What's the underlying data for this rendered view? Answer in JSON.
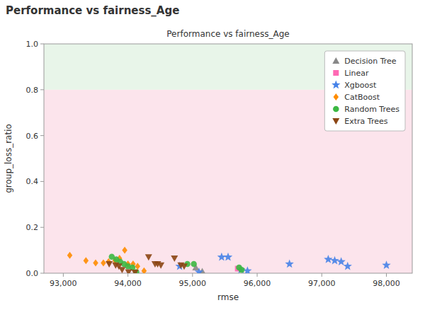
{
  "chart_data": {
    "type": "scatter",
    "title": "Performance vs fairness_Age",
    "subtitle": "Performance vs fairness_Age",
    "x_label": "rmse",
    "y_label": "group_loss_ratio",
    "xlim": [
      92700,
      98400
    ],
    "ylim": [
      0,
      1.0
    ],
    "xticks": [
      {
        "value": 93000,
        "label": "93,000"
      },
      {
        "value": 94000,
        "label": "94,000"
      },
      {
        "value": 95000,
        "label": "95,000"
      },
      {
        "value": 96000,
        "label": "96,000"
      },
      {
        "value": 97000,
        "label": "97,000"
      },
      {
        "value": 98000,
        "label": "98,000"
      }
    ],
    "yticks": [
      {
        "value": 0.0,
        "label": "0.0"
      },
      0.2,
      0.4,
      0.6,
      0.8,
      {
        "value": 1.0,
        "label": "1.0"
      }
    ],
    "grid": false,
    "legend": "upper right",
    "bands": [
      {
        "range": [
          0.8,
          1.0
        ],
        "color": "#e8f5e9"
      },
      {
        "range": [
          0.0,
          0.8
        ],
        "color": "#fce4ec"
      }
    ],
    "series": [
      {
        "name": "Decision Tree",
        "color": "#888888",
        "marker": "triangle-up",
        "x": [
          95050,
          95150
        ],
        "values": [
          0.025,
          0.008
        ]
      },
      {
        "name": "Linear",
        "color": "#ff69b4",
        "marker": "square",
        "x": [
          95700
        ],
        "values": [
          0.02
        ]
      },
      {
        "name": "Xgboost",
        "color": "#4682e8",
        "marker": "star",
        "x": [
          94800,
          95100,
          95450,
          95550,
          95750,
          95850,
          96500,
          97100,
          97200,
          97300,
          97400,
          98000
        ],
        "values": [
          0.03,
          0.005,
          0.07,
          0.07,
          0.015,
          0.01,
          0.04,
          0.06,
          0.055,
          0.05,
          0.03,
          0.035
        ]
      },
      {
        "name": "CatBoost",
        "color": "#ff8c00",
        "marker": "diamond",
        "x": [
          93100,
          93350,
          93500,
          93620,
          93700,
          93800,
          93870,
          93950,
          94000,
          94080,
          94150,
          94250
        ],
        "values": [
          0.078,
          0.055,
          0.045,
          0.045,
          0.05,
          0.055,
          0.065,
          0.1,
          0.04,
          0.04,
          0.03,
          0.01
        ]
      },
      {
        "name": "Random Trees",
        "color": "#3cb843",
        "marker": "circle",
        "x": [
          93750,
          93820,
          93880,
          93940,
          94000,
          94070,
          94130,
          94920,
          95020,
          95720,
          95760
        ],
        "values": [
          0.072,
          0.06,
          0.05,
          0.04,
          0.03,
          0.025,
          0.005,
          0.04,
          0.04,
          0.025,
          0.015
        ]
      },
      {
        "name": "Extra Trees",
        "color": "#8b4513",
        "marker": "triangle-down",
        "x": [
          93710,
          93810,
          93860,
          93910,
          94010,
          94110,
          94320,
          94420,
          94460,
          94510,
          94720,
          94820,
          94870
        ],
        "values": [
          0.04,
          0.035,
          0.03,
          0.015,
          0.005,
          0.003,
          0.07,
          0.04,
          0.04,
          0.035,
          0.065,
          0.035,
          0.03
        ]
      }
    ]
  }
}
